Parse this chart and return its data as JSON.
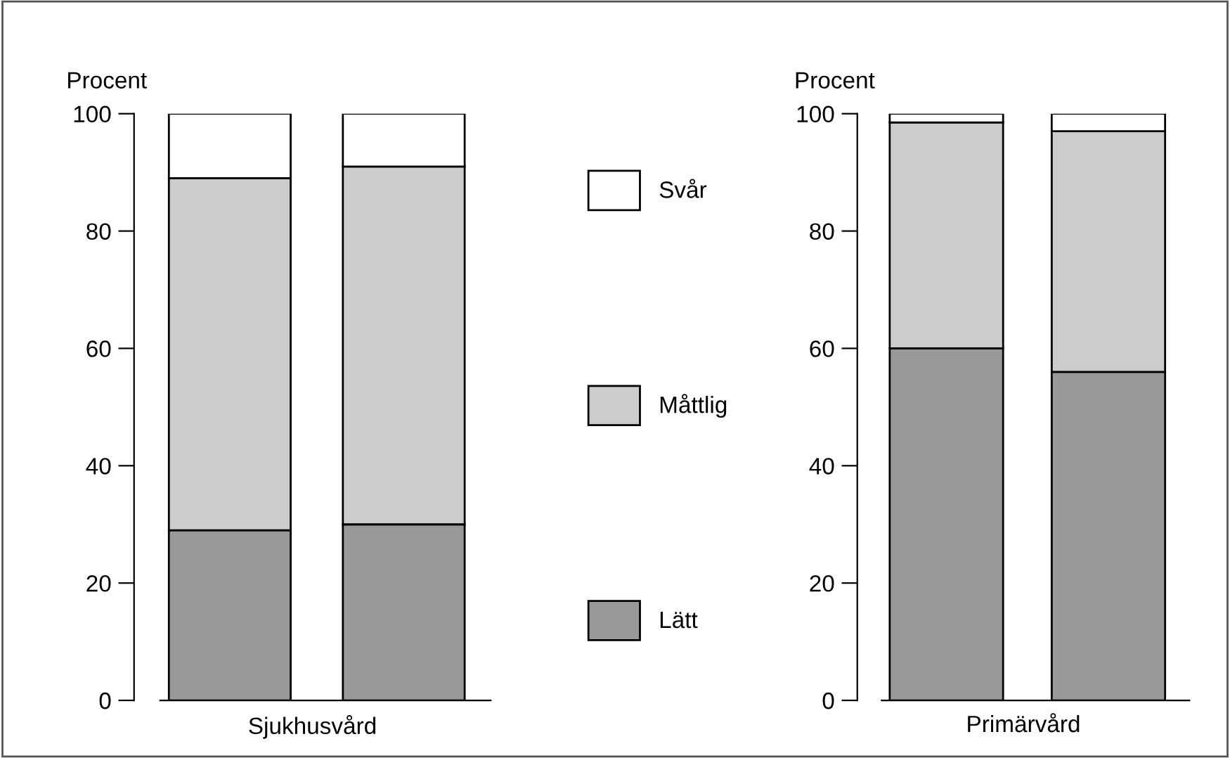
{
  "chart_data": [
    {
      "type": "bar",
      "stacked": true,
      "categories": [
        null,
        null
      ],
      "xlabel": "Sjukhusvård",
      "ylabel": "Procent",
      "ylim": [
        0,
        100
      ],
      "yticks": [
        0,
        20,
        40,
        60,
        80,
        100
      ],
      "grid": false,
      "legend": "right",
      "series": [
        {
          "name": "Lätt",
          "color": "#999999",
          "values": [
            29,
            30
          ]
        },
        {
          "name": "Måttlig",
          "color": "#cccccc",
          "values": [
            60,
            61
          ]
        },
        {
          "name": "Svår",
          "color": "#ffffff",
          "values": [
            11,
            9
          ]
        }
      ]
    },
    {
      "type": "bar",
      "stacked": true,
      "categories": [
        null,
        null
      ],
      "xlabel": "Primärvård",
      "ylabel": "Procent",
      "ylim": [
        0,
        100
      ],
      "yticks": [
        0,
        20,
        40,
        60,
        80,
        100
      ],
      "grid": false,
      "series": [
        {
          "color": "#999999",
          "values": [
            60,
            56
          ]
        },
        {
          "color": "#cccccc",
          "values": [
            38.5,
            41
          ]
        },
        {
          "color": "#ffffff",
          "values": [
            1.5,
            3
          ]
        }
      ]
    }
  ]
}
